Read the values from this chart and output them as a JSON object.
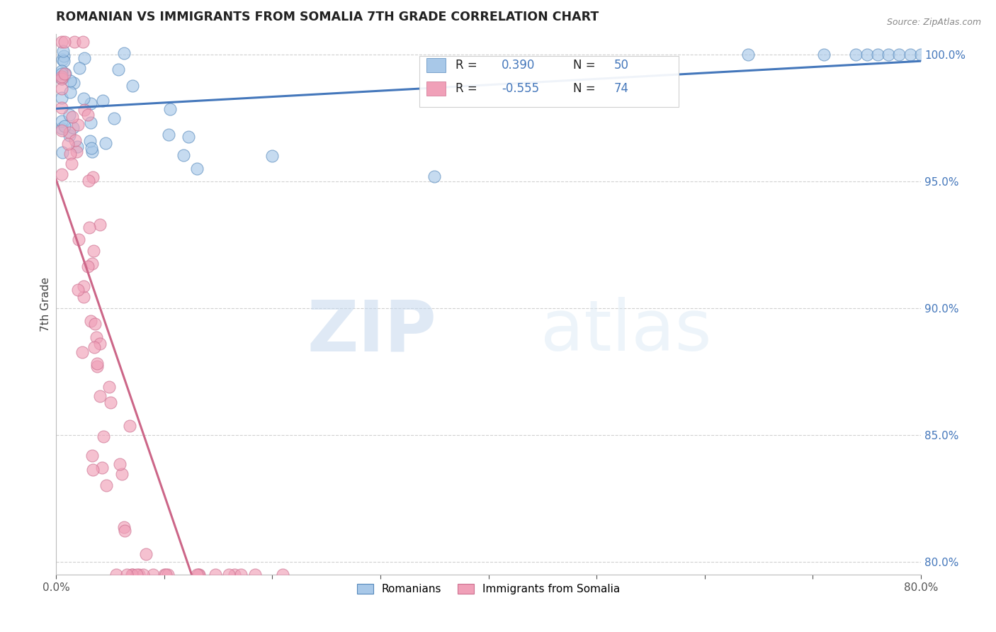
{
  "title": "ROMANIAN VS IMMIGRANTS FROM SOMALIA 7TH GRADE CORRELATION CHART",
  "source": "Source: ZipAtlas.com",
  "ylabel": "7th Grade",
  "xlim": [
    0.0,
    0.8
  ],
  "ylim": [
    0.795,
    1.008
  ],
  "yticks": [
    0.8,
    0.85,
    0.9,
    0.95,
    1.0
  ],
  "yticklabels": [
    "80.0%",
    "85.0%",
    "90.0%",
    "95.0%",
    "100.0%"
  ],
  "r_romanian": 0.39,
  "n_romanian": 50,
  "r_somalia": -0.555,
  "n_somalia": 74,
  "color_romanian": "#a8c8e8",
  "color_somalia": "#f0a0b8",
  "color_edge_romanian": "#5588bb",
  "color_edge_somalia": "#cc7090",
  "color_line_romanian": "#4477bb",
  "color_line_somalia": "#cc6688",
  "watermark_zip": "ZIP",
  "watermark_atlas": "atlas",
  "background_color": "#ffffff",
  "title_color": "#222222",
  "source_color": "#888888",
  "legend_label_romanian": "Romanians",
  "legend_label_somalia": "Immigrants from Somalia"
}
